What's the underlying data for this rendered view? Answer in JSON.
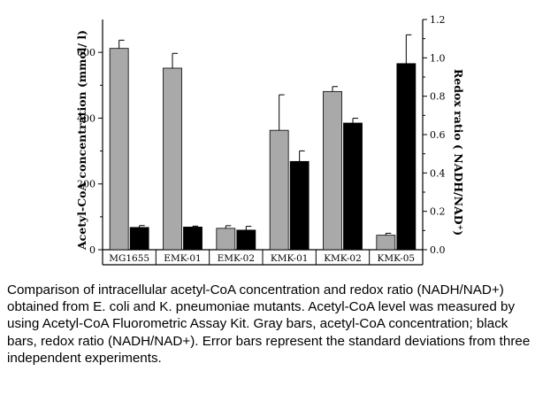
{
  "chart_data": {
    "type": "bar",
    "categories": [
      "MG1655",
      "EMK-01",
      "EMK-02",
      "KMK-01",
      "KMK-02",
      "KMK-05"
    ],
    "series": [
      {
        "axis": "left",
        "color": "#a9a9a9",
        "values": [
          612,
          552,
          65,
          363,
          481,
          44
        ],
        "errors": [
          25,
          45,
          8,
          108,
          15,
          6
        ]
      },
      {
        "axis": "right",
        "color": "#000000",
        "values": [
          0.116,
          0.118,
          0.102,
          0.46,
          0.66,
          0.97
        ],
        "errors": [
          0.01,
          0.005,
          0.02,
          0.055,
          0.025,
          0.15
        ]
      }
    ],
    "ylabel_left": "Acetyl-CoA concentration (mmol/ l)",
    "ylabel_right": "Redox ratio ( NADH/NAD⁺)",
    "ylim_left": [
      0,
      700
    ],
    "ylim_right": [
      0,
      1.2
    ],
    "yticks_left": [
      "0",
      "200",
      "400",
      "600"
    ],
    "yticks_right": [
      "0.0",
      "0.2",
      "0.4",
      "0.6",
      "0.8",
      "1.0",
      "1.2"
    ],
    "grid": false,
    "legend": "none"
  },
  "caption": "Comparison of intracellular acetyl-CoA concentration and redox ratio (NADH/NAD+) obtained from E. coli and K. pneumoniae mutants. Acetyl-CoA level was measured by using Acetyl-CoA Fluorometric Assay Kit. Gray bars, acetyl-CoA concentration; black bars, redox ratio (NADH/NAD+). Error bars represent the standard deviations from three independent experiments."
}
